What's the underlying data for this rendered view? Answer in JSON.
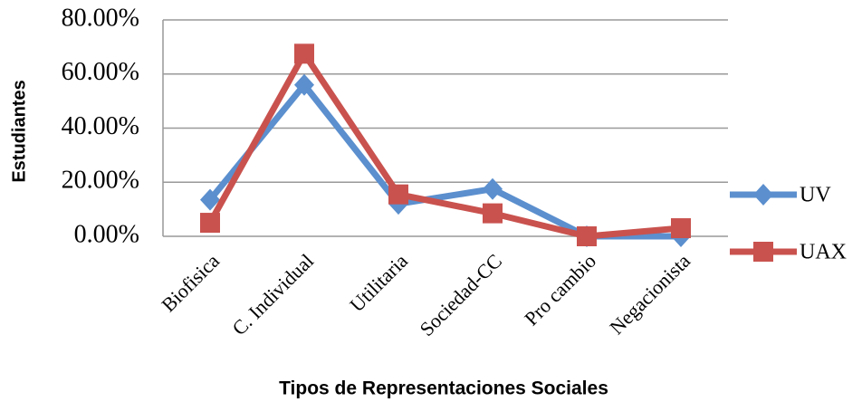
{
  "chart_data": {
    "type": "line",
    "y_label": "Estudiantes",
    "x_label": "Tipos de Representaciones Sociales",
    "categories": [
      "Biofisica",
      "C. Individual",
      "Utilitaria",
      "Sociedad-CC",
      "Pro cambio",
      "Negacionista"
    ],
    "series": [
      {
        "name": "UV",
        "color": "#5b8fce",
        "marker": "diamond",
        "values": [
          13.5,
          56,
          12,
          17.5,
          0,
          0
        ]
      },
      {
        "name": "UAX",
        "color": "#c9524e",
        "marker": "square",
        "values": [
          5,
          67.5,
          15.5,
          8.5,
          0,
          3
        ]
      }
    ],
    "ylim": [
      0,
      80
    ],
    "yticks": [
      {
        "value": 0,
        "label": "0.00%"
      },
      {
        "value": 20,
        "label": "20.00%"
      },
      {
        "value": 40,
        "label": "40.00%"
      },
      {
        "value": 60,
        "label": "60.00%"
      },
      {
        "value": 80,
        "label": "80.00%"
      }
    ],
    "grid": true,
    "legend": "right"
  }
}
